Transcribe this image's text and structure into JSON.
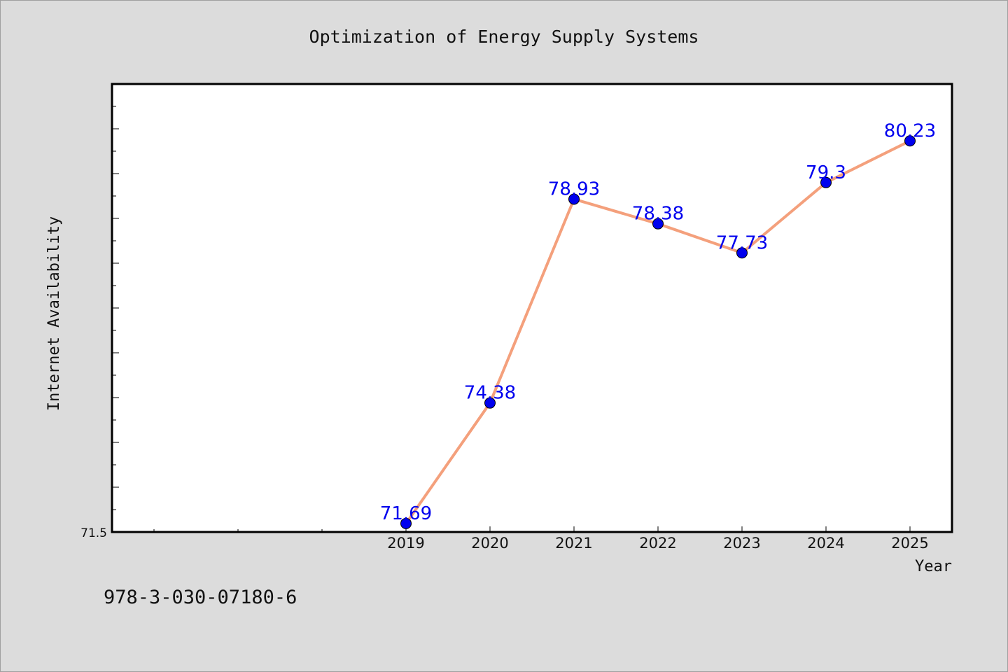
{
  "chart_data": {
    "type": "line",
    "title": "Optimization of Energy Supply Systems",
    "xlabel": "Year",
    "ylabel": "Internet Availability",
    "categories": [
      "2019",
      "2020",
      "2021",
      "2022",
      "2023",
      "2024",
      "2025"
    ],
    "series": [
      {
        "values": [
          71.69,
          74.38,
          78.93,
          78.38,
          77.73,
          79.3,
          80.23
        ],
        "line_color": "#f4a07c",
        "marker_color": "#0000ee",
        "label_color": "#0000ee"
      }
    ],
    "x_range": [
      2015.5,
      2025.5
    ],
    "ylim": [
      71.5,
      81.5
    ],
    "y_tick_labels": [
      "71.5"
    ],
    "grid": false,
    "legend": "none"
  },
  "footer": {
    "text": "978-3-030-07180-6"
  },
  "colors": {
    "background": "#dcdcdc",
    "plot_background": "#ffffff",
    "axis": "#000000"
  }
}
